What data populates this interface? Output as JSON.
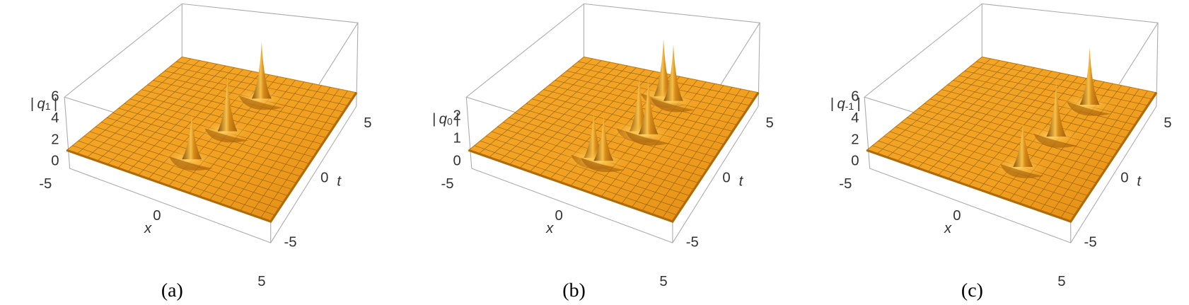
{
  "panels": [
    {
      "caption": "(a)",
      "z_label": [
        "|",
        "q",
        "1",
        "|"
      ],
      "z_ticks": [
        0,
        2,
        4,
        6
      ],
      "x_label": "x",
      "x_ticks": [
        -5,
        0,
        5
      ],
      "t_label": "t",
      "t_ticks": [
        -5,
        0,
        5
      ]
    },
    {
      "caption": "(b)",
      "z_label": [
        "|",
        "q",
        "0",
        "|"
      ],
      "z_ticks": [
        0,
        1,
        2
      ],
      "x_label": "x",
      "x_ticks": [
        -5,
        0,
        5
      ],
      "t_label": "t",
      "t_ticks": [
        -5,
        0,
        5
      ]
    },
    {
      "caption": "(c)",
      "z_label": [
        "|",
        "q",
        "-1",
        "|"
      ],
      "z_ticks": [
        0,
        2,
        4,
        6
      ],
      "x_label": "x",
      "x_ticks": [
        -5,
        0,
        5
      ],
      "t_label": "t",
      "t_ticks": [
        -5,
        0,
        5
      ]
    }
  ]
}
